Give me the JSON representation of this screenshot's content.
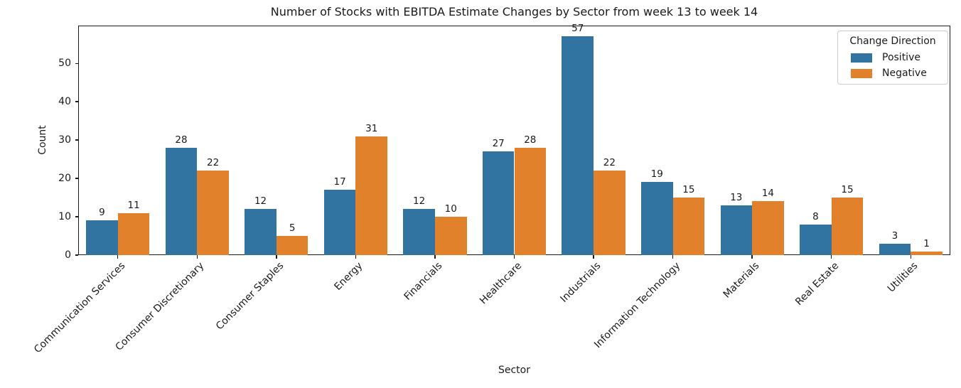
{
  "chart_data": {
    "type": "bar",
    "title": "Number of Stocks with EBITDA Estimate Changes by Sector from week 13 to week 14",
    "xlabel": "Sector",
    "ylabel": "Count",
    "categories": [
      "Communication Services",
      "Consumer Discretionary",
      "Consumer Staples",
      "Energy",
      "Financials",
      "Healthcare",
      "Industrials",
      "Information Technology",
      "Materials",
      "Real Estate",
      "Utilities"
    ],
    "series": [
      {
        "name": "Positive",
        "color": "#3274a1",
        "values": [
          9,
          28,
          12,
          17,
          12,
          27,
          57,
          19,
          13,
          8,
          3
        ]
      },
      {
        "name": "Negative",
        "color": "#e1812c",
        "values": [
          11,
          22,
          5,
          31,
          10,
          28,
          22,
          15,
          14,
          15,
          1
        ]
      }
    ],
    "bar_value_labels": true,
    "yticks": [
      0,
      10,
      20,
      30,
      40,
      50
    ],
    "ylim": [
      0,
      59.85
    ],
    "grid": false,
    "legend": {
      "title": "Change Direction",
      "position": "upper right"
    }
  }
}
